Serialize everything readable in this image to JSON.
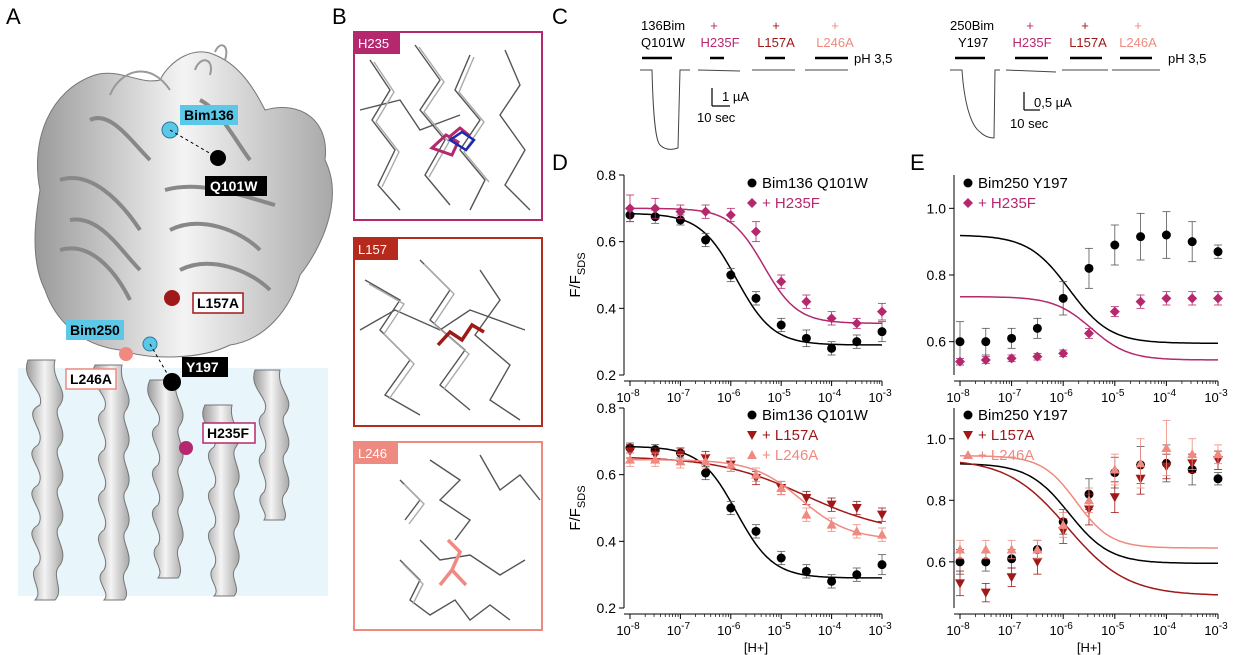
{
  "panels": {
    "a": "A",
    "b": "B",
    "c": "C",
    "d": "D",
    "e": "E"
  },
  "structure_labels": [
    {
      "text": "Bim136",
      "kind": "cyan"
    },
    {
      "text": "Q101W",
      "kind": "black"
    },
    {
      "text": "L157A",
      "kind": "red"
    },
    {
      "text": "Bim250",
      "kind": "cyan"
    },
    {
      "text": "Y197",
      "kind": "black"
    },
    {
      "text": "L246A",
      "kind": "salmon"
    },
    {
      "text": "H235F",
      "kind": "magenta"
    }
  ],
  "zoom_boxes": [
    {
      "label": "H235",
      "color": "#b5286e"
    },
    {
      "label": "L157",
      "color": "#b52a1c"
    },
    {
      "label": "L246",
      "color": "#ee8a80"
    }
  ],
  "traces": {
    "left": {
      "wt_label": [
        "136Bim",
        "Q101W"
      ],
      "mutants": [
        "H235F",
        "L157A",
        "L246A"
      ],
      "plus": "+",
      "ph": "pH 3,5",
      "scale_current": "1 µA",
      "scale_time": "10 sec"
    },
    "right": {
      "wt_label": [
        "250Bim",
        "Y197"
      ],
      "mutants": [
        "H235F",
        "L157A",
        "L246A"
      ],
      "plus": "+",
      "ph": "pH 3,5",
      "scale_current": "0,5 µA",
      "scale_time": "10 sec"
    }
  },
  "colors": {
    "wt": "#000000",
    "h235f": "#b5286e",
    "l157a": "#a01818",
    "l246a": "#f08a80",
    "cyan": "#5bc8e8",
    "membrane": "#e8f5fa"
  },
  "chart_data": [
    {
      "type": "scatter",
      "id": "D-top",
      "xlabel": "",
      "ylabel_main": "F/F",
      "ylabel_sub": "SDS",
      "x": [
        1e-08,
        3.16e-08,
        1e-07,
        3.16e-07,
        1e-06,
        3.16e-06,
        1e-05,
        3.16e-05,
        0.0001,
        0.000316,
        0.001
      ],
      "ylim": [
        0.2,
        0.8
      ],
      "yticks": [
        "0.2",
        "0.4",
        "0.6",
        "0.8"
      ],
      "series": [
        {
          "name": "Bim136 Q101W",
          "marker": "circle",
          "color": "#000000",
          "values": [
            0.68,
            0.675,
            0.665,
            0.605,
            0.5,
            0.43,
            0.35,
            0.31,
            0.28,
            0.3,
            0.33
          ],
          "err": [
            0.02,
            0.02,
            0.015,
            0.02,
            0.02,
            0.02,
            0.02,
            0.025,
            0.02,
            0.02,
            0.03
          ],
          "fit": {
            "top": 0.685,
            "bottom": 0.29,
            "ec50": 1.3e-06,
            "n": 1.2
          }
        },
        {
          "name": "+ H235F",
          "marker": "diamond",
          "color": "#b5286e",
          "values": [
            0.7,
            0.7,
            0.69,
            0.69,
            0.68,
            0.63,
            0.48,
            0.42,
            0.37,
            0.355,
            0.39
          ],
          "err": [
            0.04,
            0.03,
            0.02,
            0.02,
            0.02,
            0.03,
            0.02,
            0.02,
            0.02,
            0.015,
            0.025
          ],
          "fit": {
            "top": 0.7,
            "bottom": 0.355,
            "ec50": 4.5e-06,
            "n": 1.3
          }
        }
      ]
    },
    {
      "type": "scatter",
      "id": "D-bottom",
      "xlabel": "[H+]",
      "ylabel_main": "F/F",
      "ylabel_sub": "SDS",
      "x": [
        1e-08,
        3.16e-08,
        1e-07,
        3.16e-07,
        1e-06,
        3.16e-06,
        1e-05,
        3.16e-05,
        0.0001,
        0.000316,
        0.001
      ],
      "ylim": [
        0.2,
        0.8
      ],
      "yticks": [
        "0.2",
        "0.4",
        "0.6",
        "0.8"
      ],
      "series": [
        {
          "name": "Bim136 Q101W",
          "marker": "circle",
          "color": "#000000",
          "values": [
            0.68,
            0.675,
            0.665,
            0.605,
            0.5,
            0.43,
            0.35,
            0.31,
            0.28,
            0.3,
            0.33
          ],
          "err": [
            0.015,
            0.015,
            0.015,
            0.02,
            0.02,
            0.02,
            0.02,
            0.02,
            0.02,
            0.02,
            0.03
          ],
          "fit": {
            "top": 0.685,
            "bottom": 0.29,
            "ec50": 1.3e-06,
            "n": 1.2
          }
        },
        {
          "name": "+ L157A",
          "marker": "triangle-down",
          "color": "#a01818",
          "values": [
            0.67,
            0.66,
            0.66,
            0.65,
            0.63,
            0.59,
            0.56,
            0.53,
            0.51,
            0.5,
            0.48
          ],
          "err": [
            0.02,
            0.02,
            0.02,
            0.02,
            0.02,
            0.02,
            0.02,
            0.02,
            0.02,
            0.02,
            0.02
          ],
          "fit": {
            "top": 0.655,
            "bottom": 0.42,
            "ec50": 3e-05,
            "n": 0.5
          }
        },
        {
          "name": "+ L246A",
          "marker": "triangle-up",
          "color": "#f08a80",
          "values": [
            0.645,
            0.645,
            0.64,
            0.64,
            0.63,
            0.6,
            0.56,
            0.48,
            0.45,
            0.43,
            0.42
          ],
          "err": [
            0.02,
            0.02,
            0.02,
            0.02,
            0.02,
            0.02,
            0.02,
            0.02,
            0.02,
            0.02,
            0.02
          ],
          "fit": {
            "top": 0.645,
            "bottom": 0.405,
            "ec50": 2.5e-05,
            "n": 0.9
          }
        }
      ]
    },
    {
      "type": "scatter",
      "id": "E-top",
      "xlabel": "",
      "ylim": [
        0.5,
        1.1
      ],
      "yticks": [
        "0.6",
        "0.8",
        "1.0"
      ],
      "x": [
        1e-08,
        3.16e-08,
        1e-07,
        3.16e-07,
        1e-06,
        3.16e-06,
        1e-05,
        3.16e-05,
        0.0001,
        0.000316,
        0.001
      ],
      "series": [
        {
          "name": "Bim250 Y197",
          "marker": "circle",
          "color": "#000000",
          "values": [
            0.6,
            0.6,
            0.61,
            0.64,
            0.73,
            0.82,
            0.89,
            0.915,
            0.92,
            0.9,
            0.87
          ],
          "err": [
            0.06,
            0.04,
            0.03,
            0.03,
            0.05,
            0.06,
            0.06,
            0.07,
            0.07,
            0.06,
            0.02
          ],
          "fit": {
            "top": 0.92,
            "bottom": 0.595,
            "ec50": 1.3e-06,
            "n": 1.1
          }
        },
        {
          "name": "+ H235F",
          "marker": "diamond",
          "color": "#b5286e",
          "values": [
            0.54,
            0.545,
            0.55,
            0.555,
            0.565,
            0.625,
            0.69,
            0.72,
            0.73,
            0.73,
            0.73
          ],
          "err": [
            0.01,
            0.01,
            0.01,
            0.01,
            0.01,
            0.015,
            0.015,
            0.02,
            0.02,
            0.02,
            0.02
          ],
          "fit": {
            "top": 0.735,
            "bottom": 0.545,
            "ec50": 3.5e-06,
            "n": 1.2
          }
        }
      ]
    },
    {
      "type": "scatter",
      "id": "E-bottom",
      "xlabel": "[H+]",
      "ylim": [
        0.45,
        1.1
      ],
      "yticks": [
        "0.6",
        "0.8",
        "1.0"
      ],
      "x": [
        1e-08,
        3.16e-08,
        1e-07,
        3.16e-07,
        1e-06,
        3.16e-06,
        1e-05,
        3.16e-05,
        0.0001,
        0.000316,
        0.001
      ],
      "series": [
        {
          "name": "Bim250 Y197",
          "marker": "circle",
          "color": "#000000",
          "values": [
            0.6,
            0.6,
            0.61,
            0.64,
            0.73,
            0.82,
            0.89,
            0.915,
            0.92,
            0.9,
            0.87
          ],
          "err": [
            0.04,
            0.03,
            0.03,
            0.03,
            0.04,
            0.05,
            0.05,
            0.06,
            0.06,
            0.05,
            0.02
          ],
          "fit": {
            "top": 0.92,
            "bottom": 0.595,
            "ec50": 1.3e-06,
            "n": 1.1
          }
        },
        {
          "name": "+ L157A",
          "marker": "triangle-down",
          "color": "#a01818",
          "values": [
            0.53,
            0.5,
            0.55,
            0.6,
            0.7,
            0.77,
            0.81,
            0.87,
            0.91,
            0.92,
            0.93
          ],
          "err": [
            0.04,
            0.03,
            0.03,
            0.04,
            0.04,
            0.05,
            0.05,
            0.05,
            0.04,
            0.03,
            0.03
          ],
          "fit": {
            "top": 0.935,
            "bottom": 0.49,
            "ec50": 1.2e-06,
            "n": 0.75
          }
        },
        {
          "name": "+ L246A",
          "marker": "triangle-up",
          "color": "#f08a80",
          "values": [
            0.64,
            0.64,
            0.64,
            0.64,
            0.72,
            0.8,
            0.9,
            0.92,
            0.97,
            0.95,
            0.95
          ],
          "err": [
            0.03,
            0.03,
            0.03,
            0.03,
            0.04,
            0.04,
            0.05,
            0.08,
            0.09,
            0.05,
            0.03
          ],
          "fit": {
            "top": 0.945,
            "bottom": 0.645,
            "ec50": 1.8e-06,
            "n": 1.3
          }
        }
      ]
    }
  ],
  "xticks": [
    "10-8",
    "10-7",
    "10-6",
    "10-5",
    "10-4",
    "10-3"
  ]
}
